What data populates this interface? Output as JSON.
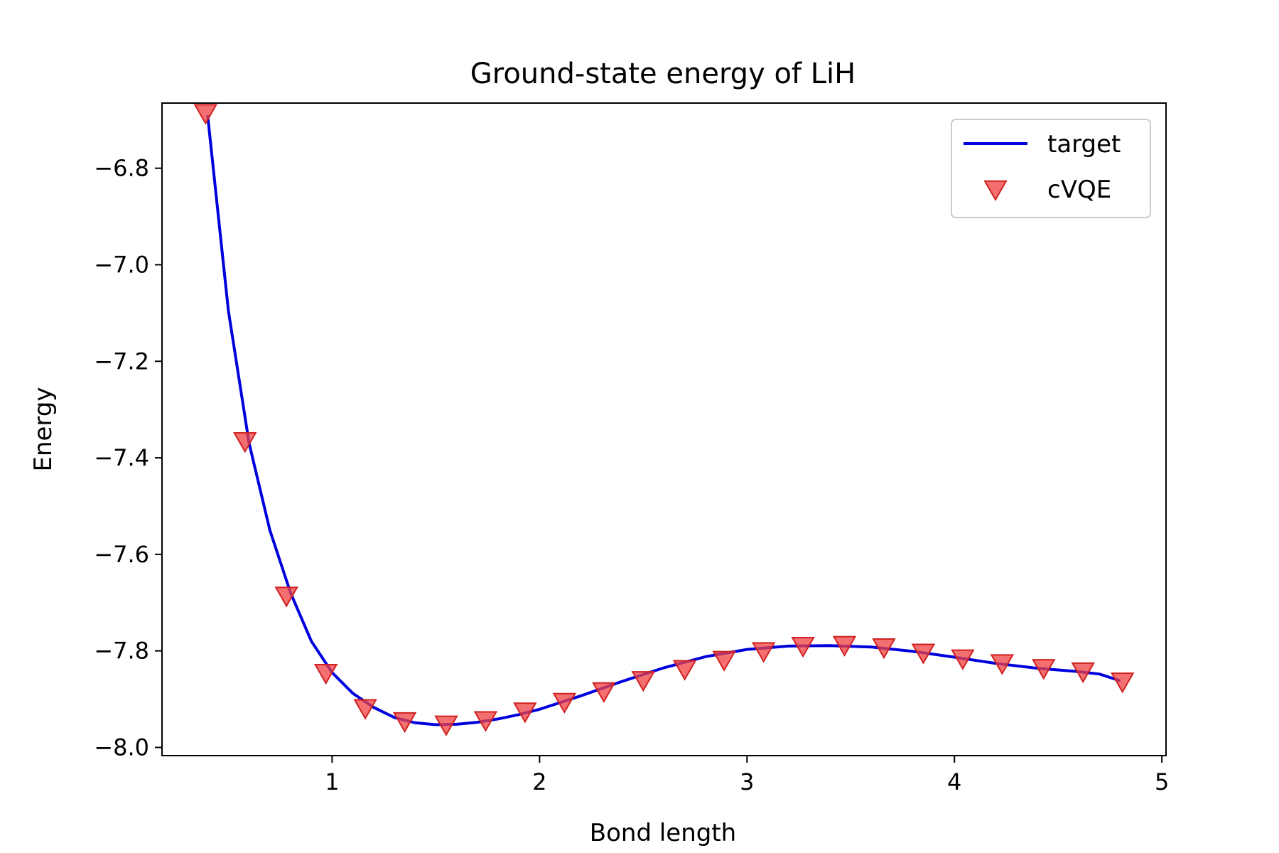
{
  "chart_data": {
    "type": "line",
    "title": "Ground-state energy of LiH",
    "xlabel": "Bond length",
    "ylabel": "Energy",
    "xlim": [
      0.18,
      5.02
    ],
    "ylim": [
      -8.017,
      -6.665
    ],
    "xticks": [
      1,
      2,
      3,
      4,
      5
    ],
    "xtick_labels": [
      "1",
      "2",
      "3",
      "4",
      "5"
    ],
    "yticks": [
      -8.0,
      -7.8,
      -7.6,
      -7.4,
      -7.2,
      -7.0,
      -6.8
    ],
    "ytick_labels": [
      "−8.0",
      "−7.8",
      "−7.6",
      "−7.4",
      "−7.2",
      "−7.0",
      "−6.8"
    ],
    "grid": false,
    "legend": "upper-right",
    "series": [
      {
        "name": "target",
        "kind": "line",
        "color": "#0000dd",
        "x": [
          0.4,
          0.5,
          0.6,
          0.7,
          0.8,
          0.9,
          1.0,
          1.1,
          1.2,
          1.3,
          1.4,
          1.5,
          1.6,
          1.7,
          1.8,
          1.9,
          2.0,
          2.2,
          2.4,
          2.6,
          2.8,
          3.0,
          3.2,
          3.4,
          3.6,
          3.8,
          4.0,
          4.2,
          4.4,
          4.6,
          4.7,
          4.8
        ],
        "y": [
          -6.69,
          -7.095,
          -7.37,
          -7.55,
          -7.68,
          -7.78,
          -7.845,
          -7.888,
          -7.917,
          -7.938,
          -7.949,
          -7.953,
          -7.952,
          -7.948,
          -7.941,
          -7.932,
          -7.921,
          -7.893,
          -7.863,
          -7.835,
          -7.812,
          -7.797,
          -7.79,
          -7.789,
          -7.792,
          -7.801,
          -7.813,
          -7.826,
          -7.836,
          -7.843,
          -7.848,
          -7.862
        ]
      },
      {
        "name": "cVQE",
        "kind": "scatter",
        "marker": "triangle-down",
        "color": "#f04040",
        "x": [
          0.39,
          0.58,
          0.78,
          0.97,
          1.16,
          1.35,
          1.55,
          1.74,
          1.93,
          2.12,
          2.31,
          2.5,
          2.7,
          2.89,
          3.08,
          3.27,
          3.47,
          3.66,
          3.85,
          4.04,
          4.23,
          4.43,
          4.62,
          4.81
        ],
        "y": [
          -6.685,
          -7.365,
          -7.685,
          -7.845,
          -7.918,
          -7.945,
          -7.952,
          -7.943,
          -7.925,
          -7.905,
          -7.883,
          -7.86,
          -7.837,
          -7.818,
          -7.8,
          -7.789,
          -7.787,
          -7.792,
          -7.803,
          -7.815,
          -7.825,
          -7.835,
          -7.842,
          -7.863
        ]
      }
    ]
  }
}
